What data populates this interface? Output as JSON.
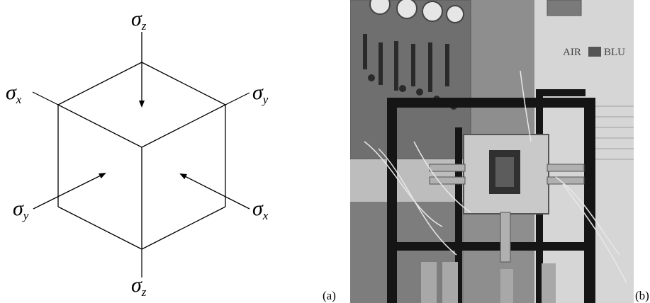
{
  "diagram": {
    "stress_labels": {
      "sigma_z_top": {
        "symbol": "σ",
        "subscript": "z"
      },
      "sigma_z_bottom": {
        "symbol": "σ",
        "subscript": "z"
      },
      "sigma_x_left": {
        "symbol": "σ",
        "subscript": "x"
      },
      "sigma_x_right": {
        "symbol": "σ",
        "subscript": "x"
      },
      "sigma_y_left": {
        "symbol": "σ",
        "subscript": "y"
      },
      "sigma_y_right": {
        "symbol": "σ",
        "subscript": "y"
      }
    },
    "panel_label": "(a)"
  },
  "photo": {
    "sign_text": "AIR",
    "sign_text_partial": "BLU",
    "panel_label": "(b)"
  },
  "colors": {
    "line": "#000000",
    "photo_bg": "#9a9a9a"
  }
}
